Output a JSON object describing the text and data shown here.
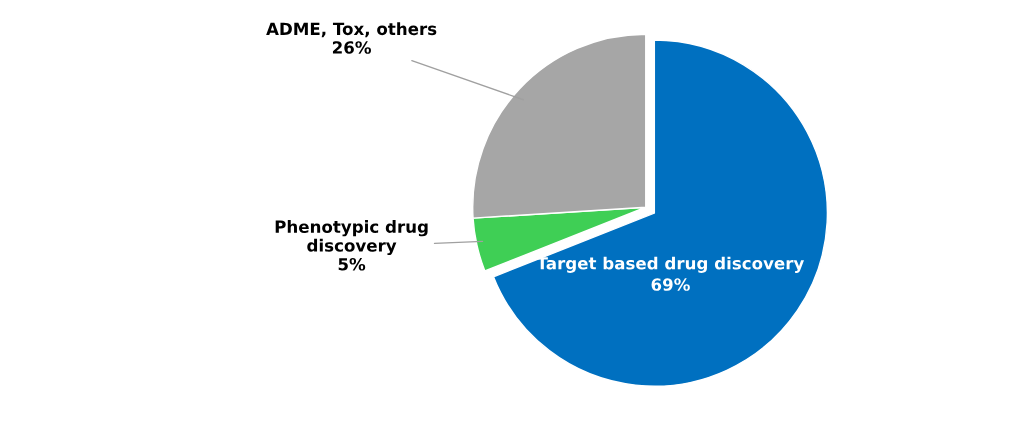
{
  "chart_data": {
    "type": "pie",
    "categories": [
      "Target based drug discovery",
      "Phenotypic drug\ndiscovery",
      "ADME, Tox, others"
    ],
    "values": [
      69,
      5,
      26
    ],
    "colors": [
      "#0070c0",
      "#3fcf55",
      "#a6a6a6"
    ],
    "value_labels": [
      "69%",
      "5%",
      "26%"
    ]
  }
}
